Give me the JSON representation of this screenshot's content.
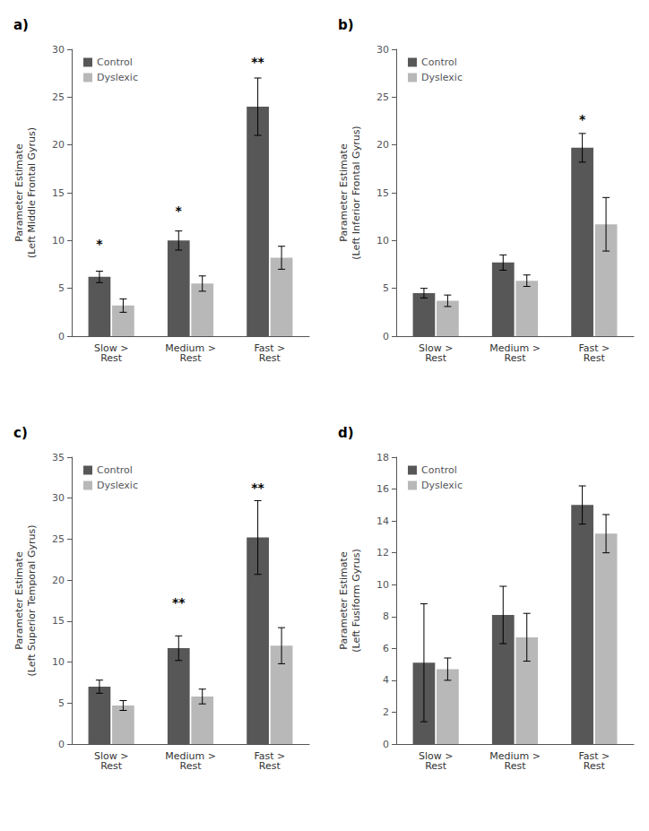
{
  "chart_data": [
    {
      "type": "bar",
      "title": "a)",
      "ylabel": "Parameter Estimate\n(Left Middle Frontal Gyrus)",
      "categories": [
        "Slow >\nRest",
        "Medium >\nRest",
        "Fast >\nRest"
      ],
      "series": [
        {
          "name": "Control",
          "color": "#575757",
          "values": [
            6.2,
            10.0,
            24.0
          ],
          "errors": [
            0.6,
            1.0,
            3.0
          ]
        },
        {
          "name": "Dyslexic",
          "color": "#b8b8b8",
          "values": [
            3.2,
            5.5,
            8.2
          ],
          "errors": [
            0.7,
            0.8,
            1.2
          ]
        }
      ],
      "ylim": [
        0,
        30
      ],
      "yticks": [
        0,
        5,
        10,
        15,
        20,
        25,
        30
      ],
      "legend": "upper left",
      "grid": false,
      "annotations": [
        {
          "text": "*",
          "category": "Slow >\nRest",
          "series": "Control",
          "y": 9.0
        },
        {
          "text": "*",
          "category": "Medium >\nRest",
          "series": "Control",
          "y": 12.5
        },
        {
          "text": "**",
          "category": "Fast >\nRest",
          "series": "Control",
          "y": 28.0
        }
      ]
    },
    {
      "type": "bar",
      "title": "b)",
      "ylabel": "Parameter Estimate\n(Left Inferior Frontal Gyrus)",
      "categories": [
        "Slow >\nRest",
        "Medium >\nRest",
        "Fast >\nRest"
      ],
      "series": [
        {
          "name": "Control",
          "color": "#575757",
          "values": [
            4.5,
            7.7,
            19.7
          ],
          "errors": [
            0.5,
            0.8,
            1.5
          ]
        },
        {
          "name": "Dyslexic",
          "color": "#b8b8b8",
          "values": [
            3.7,
            5.8,
            11.7
          ],
          "errors": [
            0.6,
            0.6,
            2.8
          ]
        }
      ],
      "ylim": [
        0,
        30
      ],
      "yticks": [
        0,
        5,
        10,
        15,
        20,
        25,
        30
      ],
      "legend": "upper left",
      "grid": false,
      "annotations": [
        {
          "text": "*",
          "category": "Fast >\nRest",
          "series": "Control",
          "y": 22.0
        }
      ]
    },
    {
      "type": "bar",
      "title": "c)",
      "ylabel": "Parameter Estimate\n(Left Superior Temporal Gyrus)",
      "categories": [
        "Slow >\nRest",
        "Medium >\nRest",
        "Fast >\nRest"
      ],
      "series": [
        {
          "name": "Control",
          "color": "#575757",
          "values": [
            7.0,
            11.7,
            25.2
          ],
          "errors": [
            0.8,
            1.5,
            4.5
          ]
        },
        {
          "name": "Dyslexic",
          "color": "#b8b8b8",
          "values": [
            4.7,
            5.8,
            12.0
          ],
          "errors": [
            0.6,
            0.9,
            2.2
          ]
        }
      ],
      "ylim": [
        0,
        35
      ],
      "yticks": [
        0,
        5,
        10,
        15,
        20,
        25,
        30,
        35
      ],
      "legend": "upper left",
      "grid": false,
      "annotations": [
        {
          "text": "**",
          "category": "Medium >\nRest",
          "series": "Control",
          "y": 16.5
        },
        {
          "text": "**",
          "category": "Fast >\nRest",
          "series": "Control",
          "y": 30.5
        }
      ]
    },
    {
      "type": "bar",
      "title": "d)",
      "ylabel": "Parameter Estimate\n(Left Fusiform Gyrus)",
      "categories": [
        "Slow >\nRest",
        "Medium >\nRest",
        "Fast >\nRest"
      ],
      "series": [
        {
          "name": "Control",
          "color": "#575757",
          "values": [
            5.1,
            8.1,
            15.0
          ],
          "errors": [
            3.7,
            1.8,
            1.2
          ]
        },
        {
          "name": "Dyslexic",
          "color": "#b8b8b8",
          "values": [
            4.7,
            6.7,
            13.2
          ],
          "errors": [
            0.7,
            1.5,
            1.2
          ]
        }
      ],
      "ylim": [
        0,
        18
      ],
      "yticks": [
        0,
        2,
        4,
        6,
        8,
        10,
        12,
        14,
        16,
        18
      ],
      "legend": "upper left",
      "grid": false
    }
  ]
}
